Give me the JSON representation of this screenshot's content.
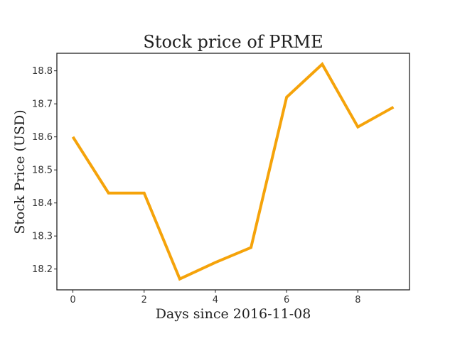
{
  "chart_data": {
    "type": "line",
    "title": "Stock price of PRME",
    "xlabel": "Days since 2016-11-08",
    "ylabel": "Stock Price (USD)",
    "x": [
      0,
      1,
      2,
      3,
      4,
      5,
      6,
      7,
      8,
      9
    ],
    "series": [
      {
        "values": [
          18.6,
          18.43,
          18.43,
          18.17,
          18.22,
          18.265,
          18.72,
          18.82,
          18.63,
          18.69
        ],
        "color": "#f5a30a"
      }
    ],
    "xlim": [
      -0.45,
      9.45
    ],
    "ylim": [
      18.137,
      18.853
    ],
    "xticks": [
      "0",
      "2",
      "4",
      "6",
      "8"
    ],
    "yticks": [
      "18.2",
      "18.3",
      "18.4",
      "18.5",
      "18.6",
      "18.7",
      "18.8"
    ],
    "grid": false
  }
}
